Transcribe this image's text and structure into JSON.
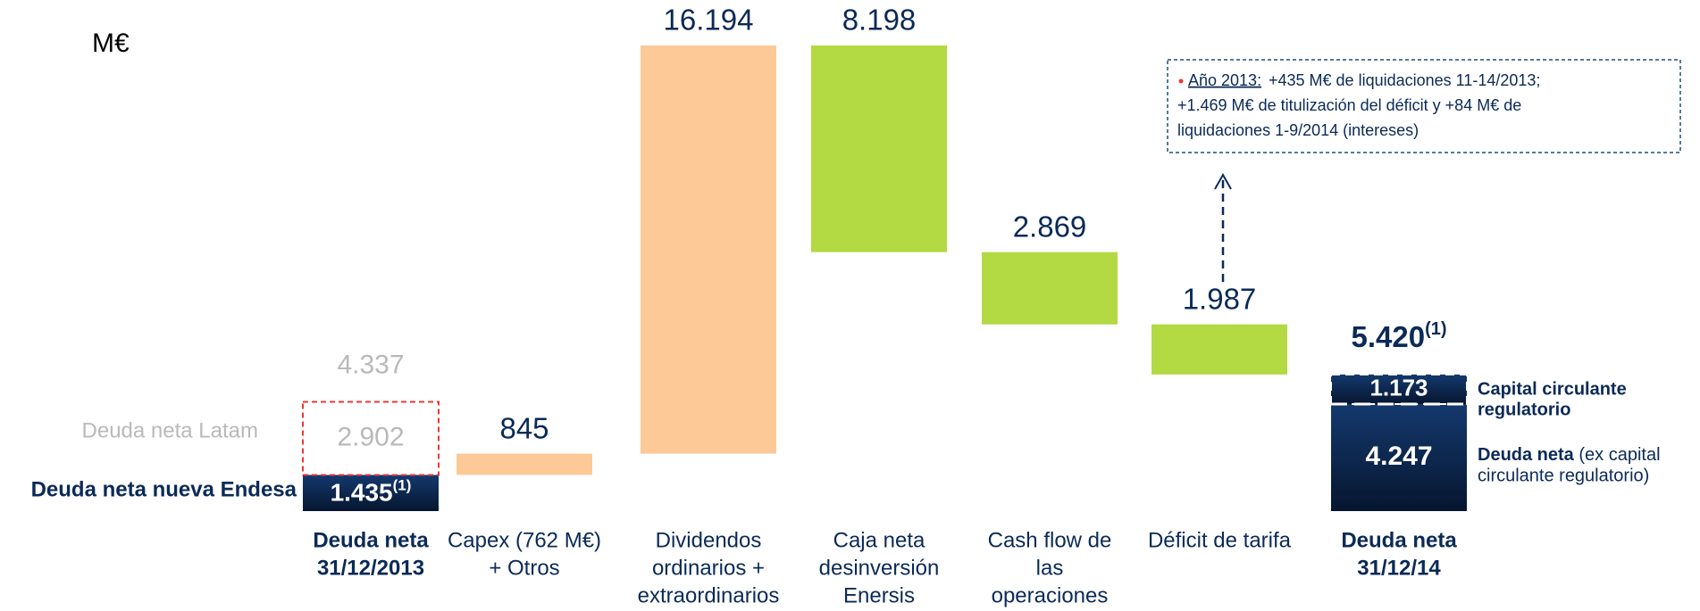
{
  "chart_data": {
    "type": "waterfall",
    "unit": "M€",
    "categories": [
      [
        "Deuda neta",
        "31/12/2013"
      ],
      [
        "Capex (762 M€)",
        "+ Otros"
      ],
      [
        "Dividendos",
        "ordinarios +",
        "extraordinarios"
      ],
      [
        "Caja neta",
        "desinversión",
        "Enersis"
      ],
      [
        "Cash flow de",
        "las",
        "operaciones"
      ],
      [
        "Déficit de tarifa"
      ],
      [
        "Deuda neta",
        "31/12/14"
      ]
    ],
    "start": {
      "total_label": "4.337",
      "segments": [
        {
          "name": "Deuda neta nueva Endesa",
          "value": 1435,
          "label": "1.435",
          "note": "(1)",
          "color": "#0b2a57"
        },
        {
          "name": "Deuda neta Latam",
          "value": 2902,
          "label": "2.902",
          "color": "#e83a3a"
        }
      ]
    },
    "steps": {
      "values": [
        845,
        16194,
        8198,
        2869,
        1987
      ],
      "value_labels": [
        "845",
        "16.194",
        "8.198",
        "2.869",
        "1.987"
      ],
      "direction": [
        "up",
        "up",
        "down",
        "down",
        "down"
      ],
      "colors": [
        "#fdc997",
        "#fdc997",
        "#b3d943",
        "#b3d943",
        "#b3d943"
      ]
    },
    "end": {
      "total_label": "5.420",
      "total_note": "(1)",
      "segments": [
        {
          "name": "Deuda neta",
          "name_extra": " (ex capital",
          "name_line2": "circulante regulatorio)",
          "value": 4247,
          "label": "4.247",
          "color": "#0b2a57"
        },
        {
          "name": "Capital circulante",
          "name_line2": "regulatorio",
          "value": 1173,
          "label": "1.173",
          "color": "#0b2a57"
        }
      ]
    },
    "annotation": {
      "heading": "Año 2013:",
      "lines": [
        "+435 M€ de liquidaciones 11-14/2013;",
        "+1.469 M€ de titulización del déficit y +84 M€ de",
        "liquidaciones 1-9/2014 (intereses)"
      ]
    }
  }
}
